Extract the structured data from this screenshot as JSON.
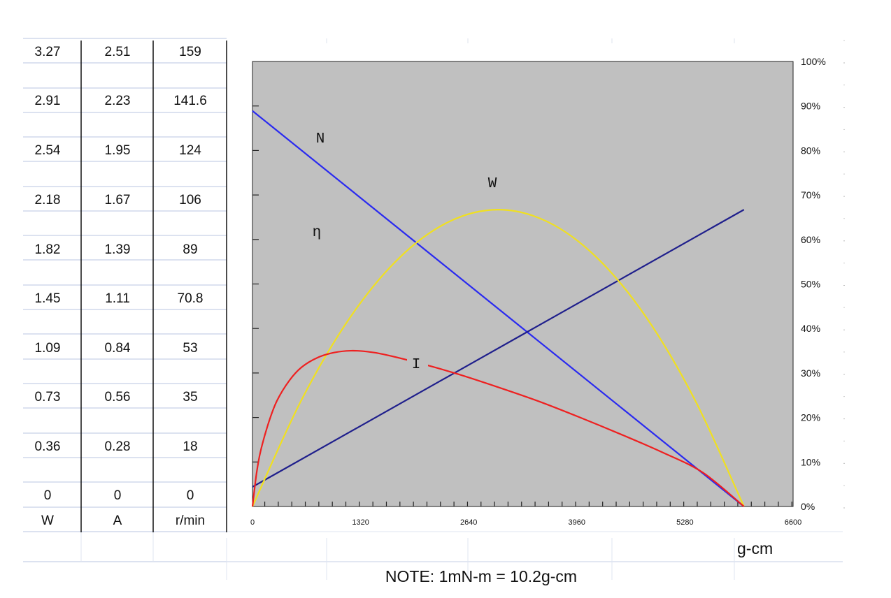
{
  "table": {
    "headers": [
      "W",
      "A",
      "r/min"
    ],
    "rows": [
      [
        "3.27",
        "2.51",
        "159"
      ],
      [
        "2.91",
        "2.23",
        "141.6"
      ],
      [
        "2.54",
        "1.95",
        "124"
      ],
      [
        "2.18",
        "1.67",
        "106"
      ],
      [
        "1.82",
        "1.39",
        "89"
      ],
      [
        "1.45",
        "1.11",
        "70.8"
      ],
      [
        "1.09",
        "0.84",
        "53"
      ],
      [
        "0.73",
        "0.56",
        "35"
      ],
      [
        "0.36",
        "0.28",
        "18"
      ],
      [
        "0",
        "0",
        "0"
      ]
    ]
  },
  "chart_data": {
    "type": "line",
    "x_unit": "g-cm",
    "x_ticks": [
      "0",
      "1320",
      "2640",
      "3960",
      "5280",
      "6600"
    ],
    "xlim": [
      0,
      6600
    ],
    "y_right_ticks": [
      "0%",
      "10%",
      "20%",
      "30%",
      "40%",
      "50%",
      "60%",
      "70%",
      "80%",
      "90%",
      "100%"
    ],
    "ylim": [
      0,
      100
    ],
    "grid": false,
    "plot_background": "#c0c0c0",
    "note": "NOTE: 1mN-m = 10.2g-cm",
    "series": [
      {
        "name": "N",
        "color": "#2a2af0",
        "x": [
          0,
          6000
        ],
        "y": [
          88.9,
          0
        ]
      },
      {
        "name": "η",
        "color": "#1f1f8c",
        "x": [
          0,
          6000
        ],
        "y": [
          4.4,
          66.7
        ]
      },
      {
        "name": "W",
        "color": "#f0e020",
        "x": [
          0,
          600,
          1200,
          1800,
          2400,
          3000,
          3600,
          4200,
          4800,
          5400,
          6000
        ],
        "y": [
          0,
          24,
          42.7,
          56,
          64,
          66.7,
          64,
          56,
          42.7,
          24,
          0
        ]
      },
      {
        "name": "I",
        "color": "#ee2020",
        "x": [
          0,
          50,
          100,
          200,
          300,
          450,
          600,
          800,
          1000,
          1200,
          1400,
          1600,
          2000,
          2500,
          3000,
          3500,
          4000,
          4500,
          5000,
          5500,
          6000
        ],
        "y": [
          0,
          7.5,
          12.5,
          19,
          23.8,
          28.3,
          31.3,
          33.5,
          34.6,
          35.0,
          34.8,
          34.2,
          32.4,
          29.8,
          26.8,
          23.6,
          20.0,
          16.2,
          12.2,
          7.6,
          0
        ]
      }
    ]
  }
}
